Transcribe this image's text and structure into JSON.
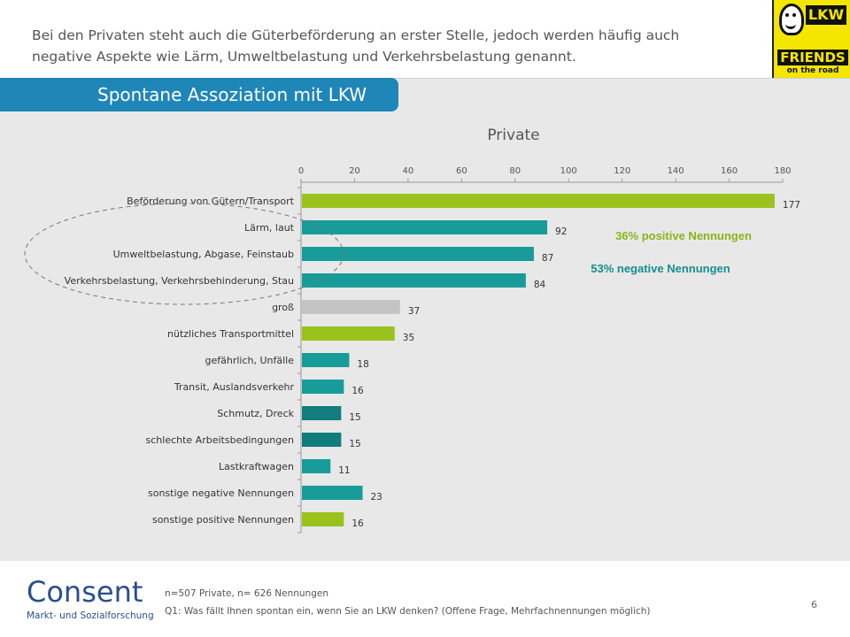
{
  "intro_text": "Bei den Privaten steht auch die Güterbeförderung an erster Stelle, jedoch werden häufig auch negative Aspekte wie Lärm, Umweltbelastung und Verkehrsbelastung genannt.",
  "logo_lkw": {
    "word": "LKW",
    "friends": "FRIENDS",
    "road": "on the road"
  },
  "banner_title": "Spontane Assoziation mit LKW",
  "colors": {
    "green": "#99c31c",
    "teal": "#179c9a",
    "teal_dark": "#117d7d",
    "gray": "#c4c4c4",
    "banner": "#1f86b8",
    "positive_text": "#8ab41a",
    "negative_text": "#168e8c"
  },
  "chart_data": {
    "type": "bar",
    "orientation": "horizontal",
    "title": "Private",
    "categories": [
      "Beförderung von Gütern/Transport",
      "Lärm, laut",
      "Umweltbelastung, Abgase, Feinstaub",
      "Verkehrsbelastung, Verkehrsbehinderung, Stau",
      "groß",
      "nützliches Transportmittel",
      "gefährlich, Unfälle",
      "Transit, Auslandsverkehr",
      "Schmutz, Dreck",
      "schlechte Arbeitsbedingungen",
      "Lastkraftwagen",
      "sonstige negative Nennungen",
      "sonstige positive Nennungen"
    ],
    "values": [
      177,
      92,
      87,
      84,
      37,
      35,
      18,
      16,
      15,
      15,
      11,
      23,
      16
    ],
    "bar_colors": [
      "green",
      "teal",
      "teal",
      "teal",
      "gray",
      "green",
      "teal",
      "teal",
      "teal_dark",
      "teal_dark",
      "teal",
      "teal",
      "green"
    ],
    "xlim": [
      0,
      180
    ],
    "xticks": [
      0,
      20,
      40,
      60,
      80,
      100,
      120,
      140,
      160,
      180
    ],
    "axis_position": "top",
    "annotations": [
      {
        "text": "36% positive Nennungen",
        "color": "positive_text"
      },
      {
        "text": "53% negative Nennungen",
        "color": "negative_text"
      }
    ],
    "highlight": "dashed ellipse around negative items"
  },
  "footer": {
    "note1": "n=507 Private, n= 626 Nennungen",
    "note2": "Q1: Was fällt Ihnen spontan ein, wenn Sie an LKW denken? (Offene Frage, Mehrfachnennungen möglich)",
    "page_number": "6",
    "logo_word": "Consent",
    "logo_sub": "Markt- und Sozialforschung"
  }
}
